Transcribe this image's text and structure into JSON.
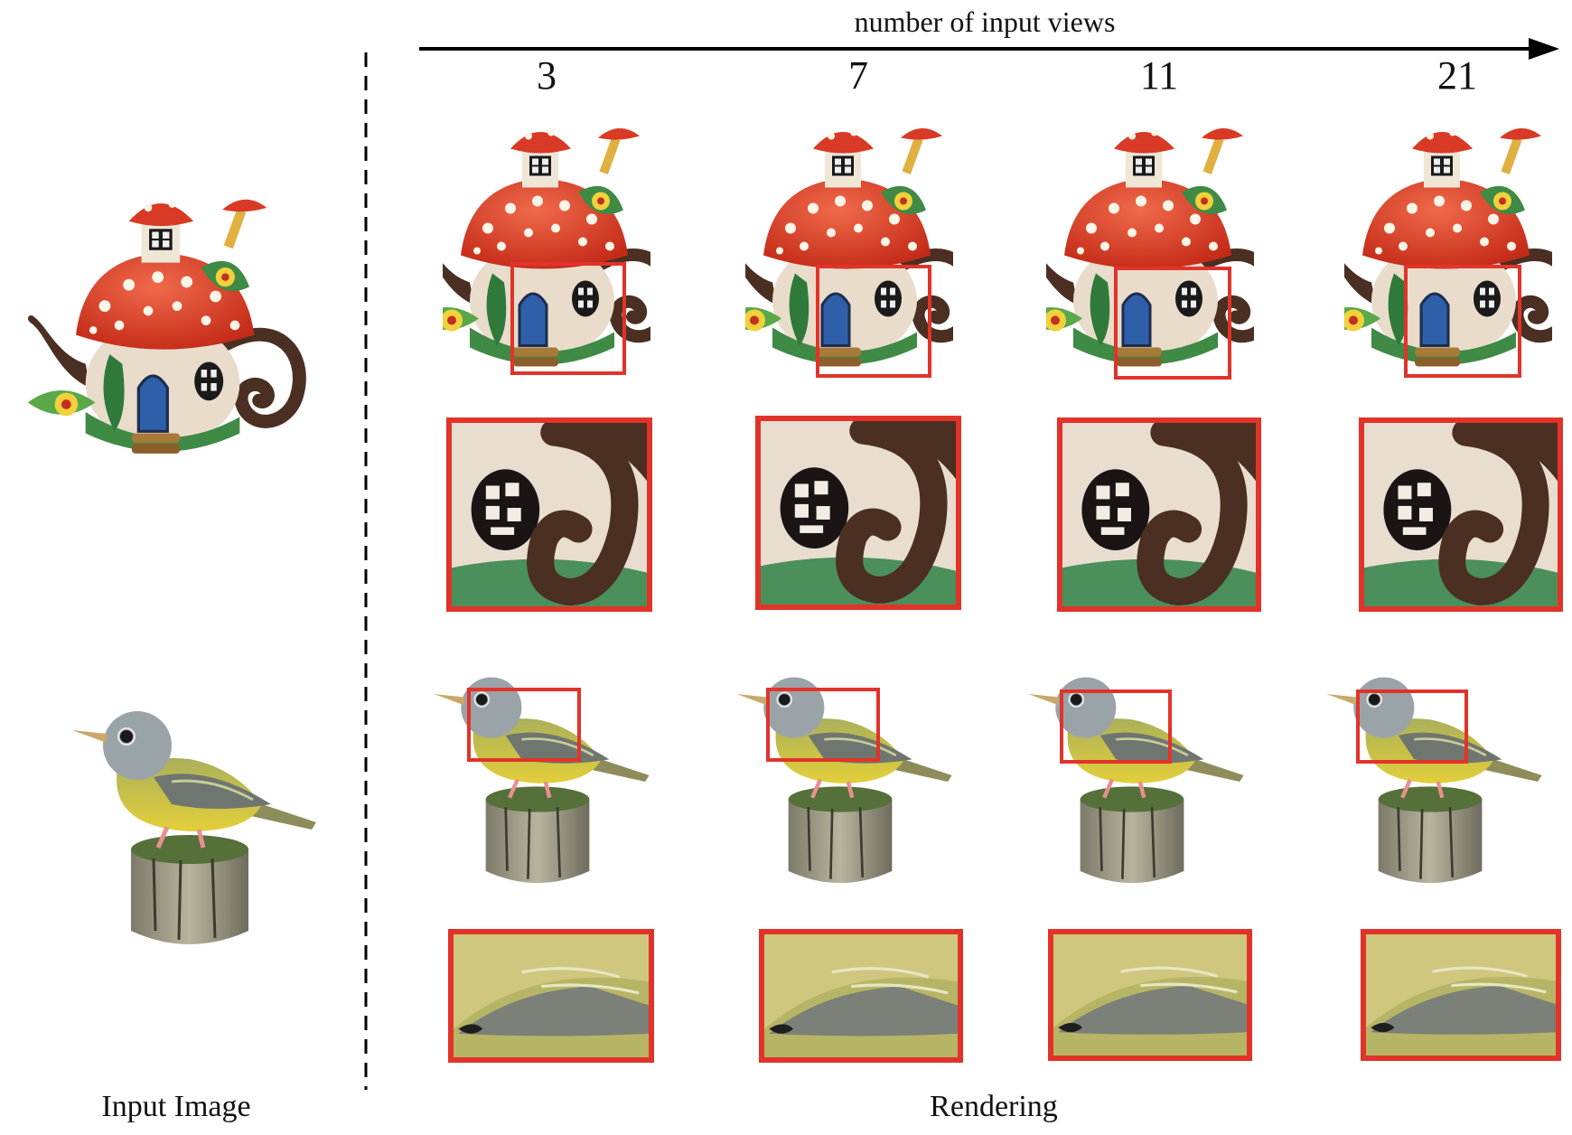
{
  "figure": {
    "axis_title": "number of input views",
    "columns": [
      "3",
      "7",
      "11",
      "21"
    ],
    "left_caption": "Input Image",
    "right_caption": "Rendering"
  },
  "colors": {
    "zoom_box": "#e2332a",
    "mushroom_cap": "#d93a25",
    "bird_head": "#9aa3a8",
    "bird_body": "#c8bf55"
  },
  "icons": {
    "input_teapot": "mushroom-teapot-image",
    "input_bird": "bird-on-stump-image"
  }
}
